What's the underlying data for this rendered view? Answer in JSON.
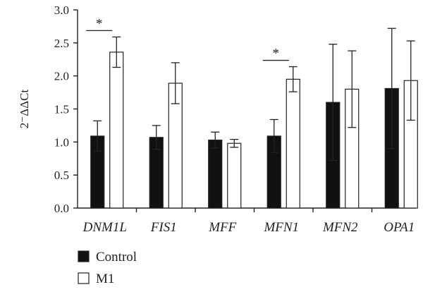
{
  "chart_data": {
    "type": "bar",
    "ylabel": "2⁻ΔΔCt",
    "ylim": [
      0,
      3.0
    ],
    "yticks": [
      "0.0",
      "0.5",
      "1.0",
      "1.5",
      "2.0",
      "2.5",
      "3.0"
    ],
    "categories": [
      "DNM1L",
      "FIS1",
      "MFF",
      "MFN1",
      "MFN2",
      "OPA1"
    ],
    "series": [
      {
        "name": "Control",
        "color": "#111111",
        "values": [
          1.09,
          1.07,
          1.03,
          1.09,
          1.6,
          1.81
        ],
        "errors": [
          0.23,
          0.18,
          0.12,
          0.25,
          0.88,
          0.91
        ]
      },
      {
        "name": "M1",
        "color": "#ffffff",
        "values": [
          2.36,
          1.89,
          0.98,
          1.95,
          1.8,
          1.93
        ],
        "errors": [
          0.23,
          0.31,
          0.06,
          0.19,
          0.58,
          0.6
        ]
      }
    ],
    "significance": [
      {
        "category": "DNM1L",
        "label": "*"
      },
      {
        "category": "MFN1",
        "label": "*"
      }
    ],
    "legend_position": "bottom-left",
    "grid": false
  }
}
